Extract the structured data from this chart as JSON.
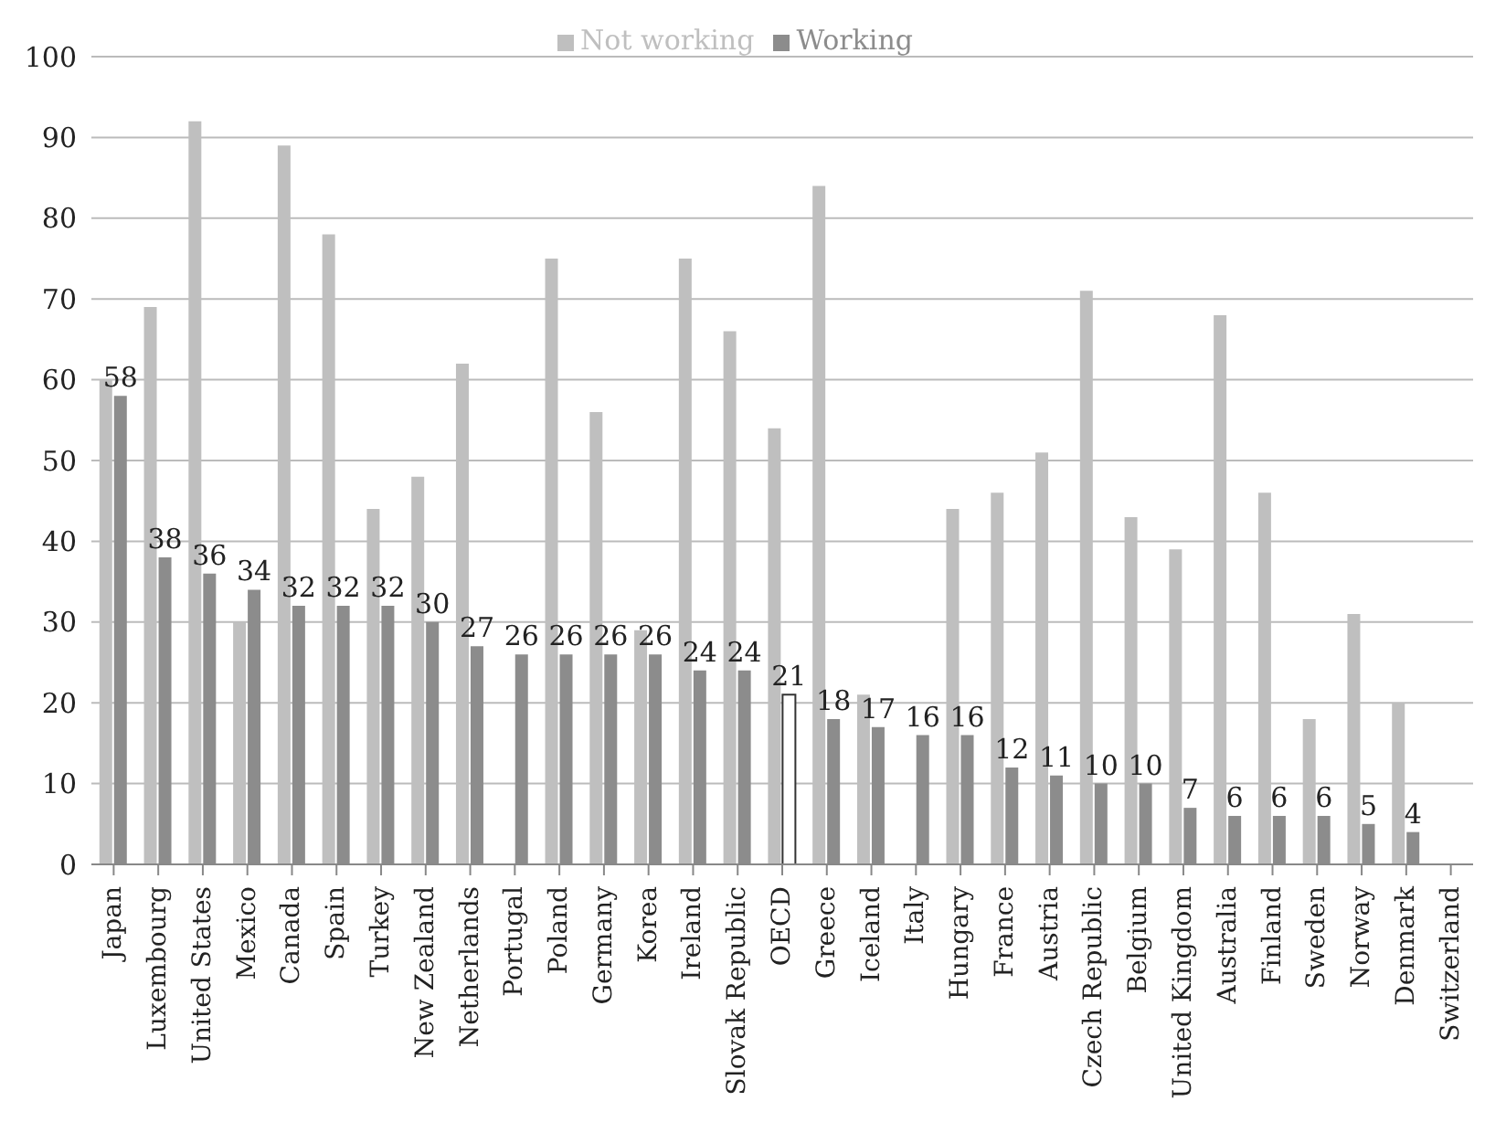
{
  "chart_data": {
    "type": "bar",
    "categories": [
      "Japan",
      "Luxembourg",
      "United States",
      "Mexico",
      "Canada",
      "Spain",
      "Turkey",
      "New Zealand",
      "Netherlands",
      "Portugal",
      "Poland",
      "Germany",
      "Korea",
      "Ireland",
      "Slovak Republic",
      "OECD",
      "Greece",
      "Iceland",
      "Italy",
      "Hungary",
      "France",
      "Austria",
      "Czech Republic",
      "Belgium",
      "United Kingdom",
      "Australia",
      "Finland",
      "Sweden",
      "Norway",
      "Denmark",
      "Switzerland"
    ],
    "series": [
      {
        "name": "Not working",
        "color": "#bfbfbf",
        "values": [
          60,
          69,
          92,
          30,
          89,
          78,
          44,
          48,
          62,
          null,
          75,
          56,
          29,
          75,
          66,
          54,
          84,
          21,
          null,
          44,
          46,
          51,
          71,
          43,
          39,
          68,
          46,
          18,
          31,
          20,
          null
        ]
      },
      {
        "name": "Working",
        "color": "#8c8c8c",
        "colors": [
          "#8c8c8c",
          "#8c8c8c",
          "#8c8c8c",
          "#8c8c8c",
          "#8c8c8c",
          "#8c8c8c",
          "#8c8c8c",
          "#8c8c8c",
          "#8c8c8c",
          "#8c8c8c",
          "#8c8c8c",
          "#8c8c8c",
          "#8c8c8c",
          "#8c8c8c",
          "#8c8c8c",
          "#ffffff",
          "#8c8c8c",
          "#8c8c8c",
          "#8c8c8c",
          "#8c8c8c",
          "#8c8c8c",
          "#8c8c8c",
          "#8c8c8c",
          "#8c8c8c",
          "#8c8c8c",
          "#8c8c8c",
          "#8c8c8c",
          "#8c8c8c",
          "#8c8c8c",
          "#8c8c8c",
          "#8c8c8c"
        ],
        "values": [
          58,
          38,
          36,
          34,
          32,
          32,
          32,
          30,
          27,
          26,
          26,
          26,
          26,
          24,
          24,
          21,
          18,
          17,
          16,
          16,
          12,
          11,
          10,
          10,
          7,
          6,
          6,
          6,
          5,
          4,
          null
        ],
        "value_labels": [
          "58",
          "38",
          "36",
          "34",
          "32",
          "32",
          "32",
          "30",
          "27",
          "26",
          "26",
          "26",
          "26",
          "24",
          "24",
          "21",
          "18",
          "17",
          "16",
          "16",
          "12",
          "11",
          "10",
          "10",
          "7",
          "6",
          "6",
          "6",
          "5",
          "4",
          null
        ]
      }
    ],
    "ylim": [
      0,
      100
    ],
    "yticks": [
      0,
      10,
      20,
      30,
      40,
      50,
      60,
      70,
      80,
      90,
      100
    ],
    "grid": "y",
    "legend": "top"
  }
}
